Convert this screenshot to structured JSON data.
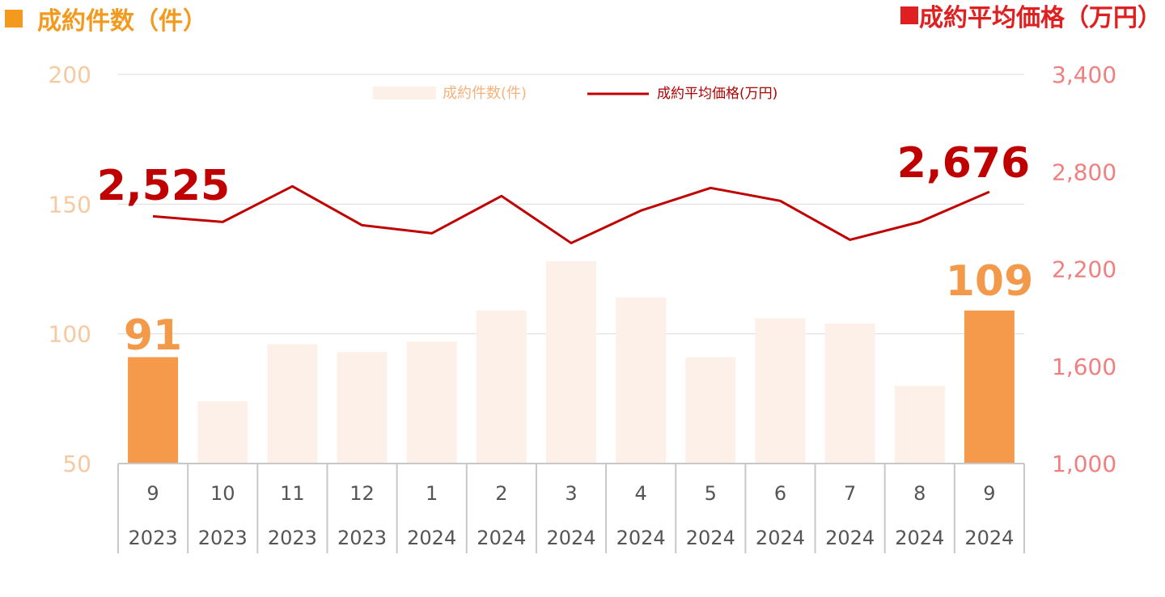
{
  "header": {
    "left_title": "成約件数（件）",
    "right_title": "成約平均価格（万円）",
    "left_color": "#f39a1e",
    "right_color": "#e02020"
  },
  "chart_data": {
    "type": "bar+line",
    "categories": [
      {
        "month": "9",
        "year": "2023"
      },
      {
        "month": "10",
        "year": "2023"
      },
      {
        "month": "11",
        "year": "2023"
      },
      {
        "month": "12",
        "year": "2023"
      },
      {
        "month": "1",
        "year": "2024"
      },
      {
        "month": "2",
        "year": "2024"
      },
      {
        "month": "3",
        "year": "2024"
      },
      {
        "month": "4",
        "year": "2024"
      },
      {
        "month": "5",
        "year": "2024"
      },
      {
        "month": "6",
        "year": "2024"
      },
      {
        "month": "7",
        "year": "2024"
      },
      {
        "month": "8",
        "year": "2024"
      },
      {
        "month": "9",
        "year": "2024"
      }
    ],
    "series": [
      {
        "name": "成約件数(件)",
        "kind": "bar",
        "axis": "left",
        "values": [
          91,
          74,
          96,
          93,
          97,
          109,
          128,
          114,
          91,
          106,
          104,
          80,
          109
        ],
        "color": "#fcf0e8",
        "highlight_color": "#f59a4b",
        "highlight_indices": [
          0,
          12
        ]
      },
      {
        "name": "成約平均価格(万円)",
        "kind": "line",
        "axis": "right",
        "values": [
          2525,
          2490,
          2710,
          2470,
          2420,
          2650,
          2360,
          2560,
          2700,
          2620,
          2380,
          2490,
          2676
        ],
        "color": "#c00000"
      }
    ],
    "left_axis": {
      "ylim": [
        50,
        200
      ],
      "ticks": [
        "50",
        "100",
        "150",
        "200"
      ]
    },
    "right_axis": {
      "ylim": [
        1000,
        3400
      ],
      "ticks": [
        "1,000",
        "1,600",
        "2,200",
        "2,800",
        "3,400"
      ]
    },
    "callouts": {
      "bar_first": "91",
      "bar_last": "109",
      "line_first": "2,525",
      "line_last": "2,676"
    },
    "legend": {
      "bar_label": "成約件数(件)",
      "line_label": "成約平均価格(万円)",
      "placement": "top-center"
    },
    "grid": true
  }
}
